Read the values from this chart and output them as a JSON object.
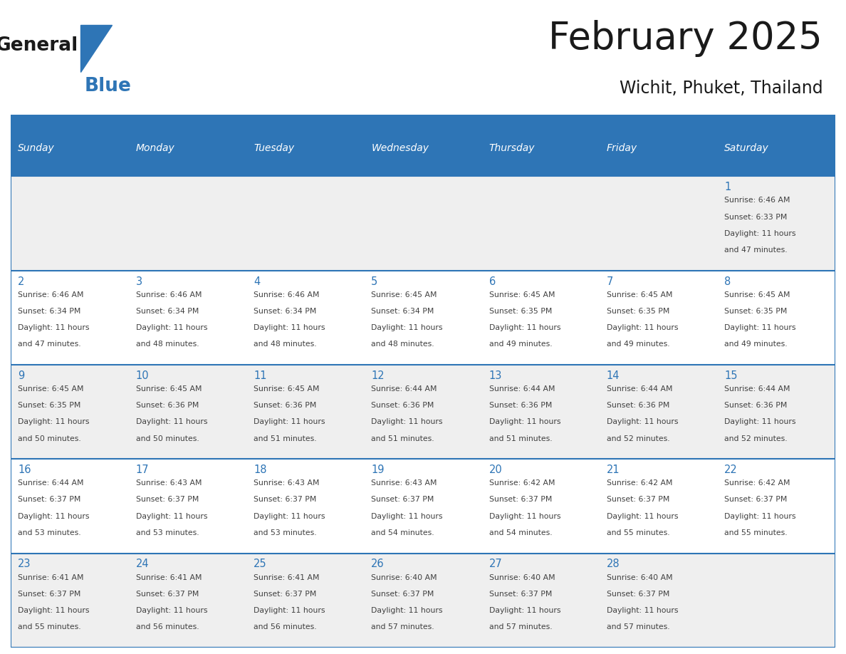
{
  "title": "February 2025",
  "subtitle": "Wichit, Phuket, Thailand",
  "header_color": "#2e75b6",
  "header_text_color": "#ffffff",
  "day_names": [
    "Sunday",
    "Monday",
    "Tuesday",
    "Wednesday",
    "Thursday",
    "Friday",
    "Saturday"
  ],
  "odd_row_color": "#efefef",
  "even_row_color": "#ffffff",
  "border_color": "#2e75b6",
  "text_color": "#404040",
  "number_color": "#2e75b6",
  "logo_general_color": "#1a1a1a",
  "logo_blue_color": "#2e75b6",
  "calendar": [
    [
      null,
      null,
      null,
      null,
      null,
      null,
      {
        "day": 1,
        "sunrise": "6:46 AM",
        "sunset": "6:33 PM",
        "daylight_hours": "11 hours",
        "daylight_minutes": "and 47 minutes."
      }
    ],
    [
      {
        "day": 2,
        "sunrise": "6:46 AM",
        "sunset": "6:34 PM",
        "daylight_hours": "11 hours",
        "daylight_minutes": "and 47 minutes."
      },
      {
        "day": 3,
        "sunrise": "6:46 AM",
        "sunset": "6:34 PM",
        "daylight_hours": "11 hours",
        "daylight_minutes": "and 48 minutes."
      },
      {
        "day": 4,
        "sunrise": "6:46 AM",
        "sunset": "6:34 PM",
        "daylight_hours": "11 hours",
        "daylight_minutes": "and 48 minutes."
      },
      {
        "day": 5,
        "sunrise": "6:45 AM",
        "sunset": "6:34 PM",
        "daylight_hours": "11 hours",
        "daylight_minutes": "and 48 minutes."
      },
      {
        "day": 6,
        "sunrise": "6:45 AM",
        "sunset": "6:35 PM",
        "daylight_hours": "11 hours",
        "daylight_minutes": "and 49 minutes."
      },
      {
        "day": 7,
        "sunrise": "6:45 AM",
        "sunset": "6:35 PM",
        "daylight_hours": "11 hours",
        "daylight_minutes": "and 49 minutes."
      },
      {
        "day": 8,
        "sunrise": "6:45 AM",
        "sunset": "6:35 PM",
        "daylight_hours": "11 hours",
        "daylight_minutes": "and 49 minutes."
      }
    ],
    [
      {
        "day": 9,
        "sunrise": "6:45 AM",
        "sunset": "6:35 PM",
        "daylight_hours": "11 hours",
        "daylight_minutes": "and 50 minutes."
      },
      {
        "day": 10,
        "sunrise": "6:45 AM",
        "sunset": "6:36 PM",
        "daylight_hours": "11 hours",
        "daylight_minutes": "and 50 minutes."
      },
      {
        "day": 11,
        "sunrise": "6:45 AM",
        "sunset": "6:36 PM",
        "daylight_hours": "11 hours",
        "daylight_minutes": "and 51 minutes."
      },
      {
        "day": 12,
        "sunrise": "6:44 AM",
        "sunset": "6:36 PM",
        "daylight_hours": "11 hours",
        "daylight_minutes": "and 51 minutes."
      },
      {
        "day": 13,
        "sunrise": "6:44 AM",
        "sunset": "6:36 PM",
        "daylight_hours": "11 hours",
        "daylight_minutes": "and 51 minutes."
      },
      {
        "day": 14,
        "sunrise": "6:44 AM",
        "sunset": "6:36 PM",
        "daylight_hours": "11 hours",
        "daylight_minutes": "and 52 minutes."
      },
      {
        "day": 15,
        "sunrise": "6:44 AM",
        "sunset": "6:36 PM",
        "daylight_hours": "11 hours",
        "daylight_minutes": "and 52 minutes."
      }
    ],
    [
      {
        "day": 16,
        "sunrise": "6:44 AM",
        "sunset": "6:37 PM",
        "daylight_hours": "11 hours",
        "daylight_minutes": "and 53 minutes."
      },
      {
        "day": 17,
        "sunrise": "6:43 AM",
        "sunset": "6:37 PM",
        "daylight_hours": "11 hours",
        "daylight_minutes": "and 53 minutes."
      },
      {
        "day": 18,
        "sunrise": "6:43 AM",
        "sunset": "6:37 PM",
        "daylight_hours": "11 hours",
        "daylight_minutes": "and 53 minutes."
      },
      {
        "day": 19,
        "sunrise": "6:43 AM",
        "sunset": "6:37 PM",
        "daylight_hours": "11 hours",
        "daylight_minutes": "and 54 minutes."
      },
      {
        "day": 20,
        "sunrise": "6:42 AM",
        "sunset": "6:37 PM",
        "daylight_hours": "11 hours",
        "daylight_minutes": "and 54 minutes."
      },
      {
        "day": 21,
        "sunrise": "6:42 AM",
        "sunset": "6:37 PM",
        "daylight_hours": "11 hours",
        "daylight_minutes": "and 55 minutes."
      },
      {
        "day": 22,
        "sunrise": "6:42 AM",
        "sunset": "6:37 PM",
        "daylight_hours": "11 hours",
        "daylight_minutes": "and 55 minutes."
      }
    ],
    [
      {
        "day": 23,
        "sunrise": "6:41 AM",
        "sunset": "6:37 PM",
        "daylight_hours": "11 hours",
        "daylight_minutes": "and 55 minutes."
      },
      {
        "day": 24,
        "sunrise": "6:41 AM",
        "sunset": "6:37 PM",
        "daylight_hours": "11 hours",
        "daylight_minutes": "and 56 minutes."
      },
      {
        "day": 25,
        "sunrise": "6:41 AM",
        "sunset": "6:37 PM",
        "daylight_hours": "11 hours",
        "daylight_minutes": "and 56 minutes."
      },
      {
        "day": 26,
        "sunrise": "6:40 AM",
        "sunset": "6:37 PM",
        "daylight_hours": "11 hours",
        "daylight_minutes": "and 57 minutes."
      },
      {
        "day": 27,
        "sunrise": "6:40 AM",
        "sunset": "6:37 PM",
        "daylight_hours": "11 hours",
        "daylight_minutes": "and 57 minutes."
      },
      {
        "day": 28,
        "sunrise": "6:40 AM",
        "sunset": "6:37 PM",
        "daylight_hours": "11 hours",
        "daylight_minutes": "and 57 minutes."
      },
      null
    ]
  ]
}
